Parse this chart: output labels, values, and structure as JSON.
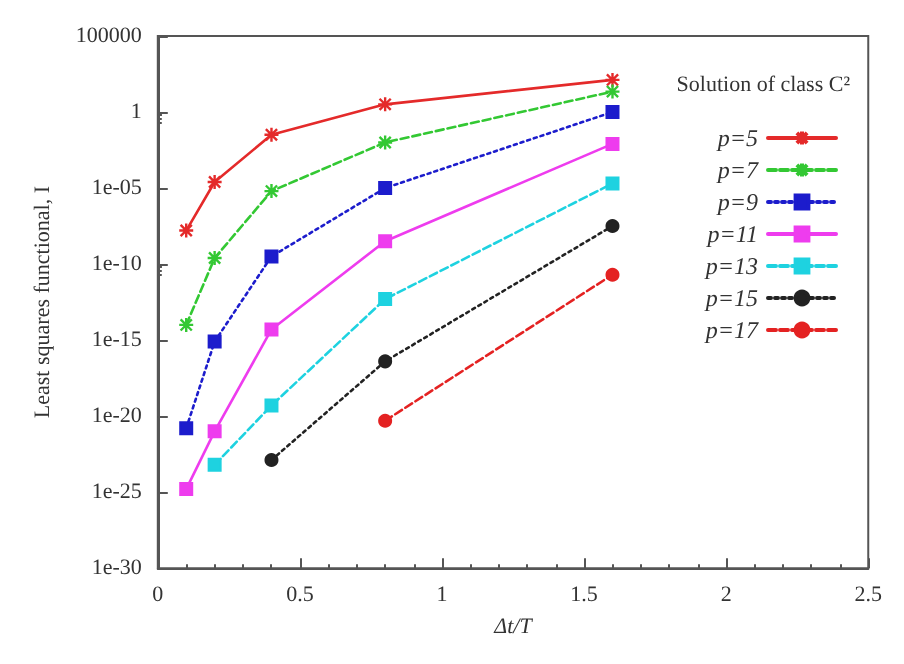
{
  "chart_data": {
    "type": "line",
    "xlabel": "Δt/T",
    "ylabel": "Least squares functional, I",
    "legend_title": "Solution of class C²",
    "x": [
      0.1,
      0.2,
      0.4,
      0.8,
      1.6
    ],
    "xlim": [
      0,
      2.5
    ],
    "xticks": [
      0,
      0.5,
      1,
      1.5,
      2,
      2.5
    ],
    "log": "y",
    "ylim": [
      1e-30,
      100000
    ],
    "yticks": [
      {
        "value": 100000,
        "label": "100000"
      },
      {
        "value": 1,
        "label": "1"
      },
      {
        "value": 1e-05,
        "label": "1e-05"
      },
      {
        "value": 1e-10,
        "label": "1e-10"
      },
      {
        "value": 1e-15,
        "label": "1e-15"
      },
      {
        "value": 1e-20,
        "label": "1e-20"
      },
      {
        "value": 1e-25,
        "label": "1e-25"
      },
      {
        "value": 1e-30,
        "label": "1e-30"
      }
    ],
    "grid": false,
    "legend": "top right",
    "series": [
      {
        "name": "p=5",
        "color": "#e42a2a",
        "marker": "cross",
        "line_style": "solid",
        "values": [
          1.6e-08,
          2.5e-05,
          0.032,
          3.2,
          130
        ]
      },
      {
        "name": "p=7",
        "color": "#33c833",
        "marker": "cross",
        "line_style": "dashed",
        "values": [
          1e-14,
          2.5e-10,
          6.3e-06,
          0.01,
          22
        ]
      },
      {
        "name": "p=9",
        "color": "#1c1ccc",
        "marker": "square",
        "line_style": "dotted",
        "values": [
          1.6e-21,
          8e-16,
          3.2e-10,
          1e-05,
          1
        ]
      },
      {
        "name": "p=11",
        "color": "#ee3cee",
        "marker": "square",
        "line_style": "solid",
        "values": [
          1.6e-25,
          1e-21,
          5e-15,
          3.2e-09,
          0.008
        ]
      },
      {
        "name": "p=13",
        "color": "#1ed2e0",
        "marker": "square",
        "line_style": "dashed",
        "values": [
          null,
          6.3e-24,
          5e-20,
          5e-13,
          2e-05
        ]
      },
      {
        "name": "p=15",
        "color": "#222222",
        "marker": "circle",
        "line_style": "dotted",
        "values": [
          null,
          null,
          1.3e-23,
          4e-17,
          3.2e-08
        ]
      },
      {
        "name": "p=17",
        "color": "#e42222",
        "marker": "circle",
        "line_style": "dashed",
        "values": [
          null,
          null,
          null,
          5e-21,
          2e-11
        ]
      }
    ]
  }
}
